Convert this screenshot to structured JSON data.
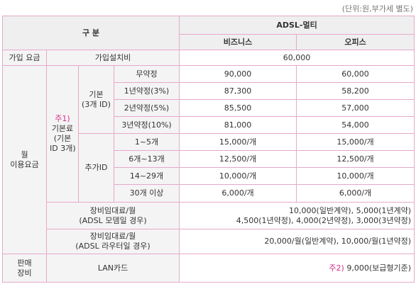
{
  "note": "(단위:원,부가세 별도)",
  "header": {
    "category": "구 분",
    "product": "ADSL-멀티",
    "columns": [
      "비즈니스",
      "오피스"
    ]
  },
  "signup": {
    "group": "가입 요금",
    "item": "가입설치비",
    "value": "60,000"
  },
  "monthly": {
    "group_lines": [
      "월",
      "이용요금"
    ],
    "basic_fee": {
      "note": "주1)",
      "label_lines": [
        "기본료",
        "(기본",
        "ID 3개)"
      ],
      "groups": [
        {
          "label_lines": [
            "기본",
            "(3개 ID)"
          ],
          "rows": [
            [
              "무약정",
              "90,000",
              "60,000"
            ],
            [
              "1년약정(3%)",
              "87,300",
              "58,200"
            ],
            [
              "2년약정(5%)",
              "85,500",
              "57,000"
            ],
            [
              "3년약정(10%)",
              "81,000",
              "54,000"
            ]
          ]
        },
        {
          "label_lines": [
            "추가ID"
          ],
          "rows": [
            [
              "1~5개",
              "15,000/개",
              "15,000/개"
            ],
            [
              "6개~13개",
              "12,500/개",
              "12,500/개"
            ],
            [
              "14~29개",
              "10,000/개",
              "10,000/개"
            ],
            [
              "30개 이상",
              "6,000/개",
              "6,000/개"
            ]
          ]
        }
      ]
    },
    "equipment": [
      {
        "label_lines": [
          "장비임대료/월",
          "(ADSL 모뎀일 경우)"
        ],
        "value_lines": [
          "10,000(일반계약), 5,000(1년계약)",
          "4,500(1년약정), 4,000(2년약정), 3,000(3년약정)"
        ]
      },
      {
        "label_lines": [
          "장비임대료/월",
          "(ADSL 라우터일 경우)"
        ],
        "value_lines": [
          "20,000/월(일반계약), 10,000/월(1년약정)"
        ]
      }
    ]
  },
  "sales": {
    "group_lines": [
      "판매",
      "장비"
    ],
    "item": "LAN카드",
    "note": "주2)",
    "value": "9,000(보급형기준)"
  }
}
